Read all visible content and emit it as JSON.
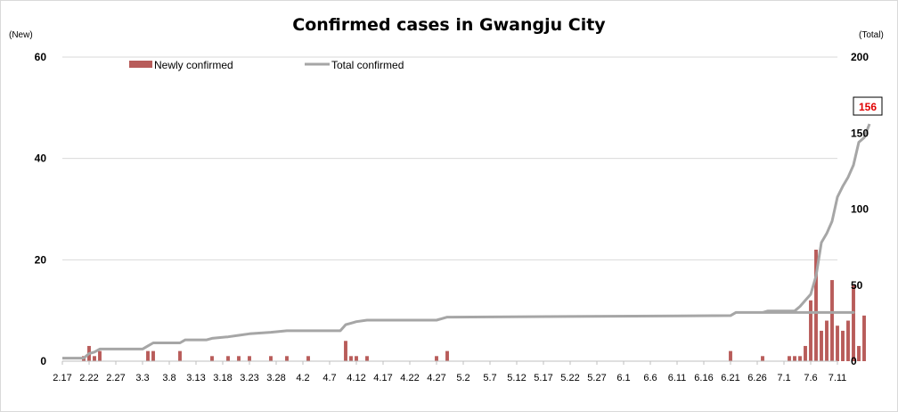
{
  "chart_data": {
    "type": "bar+line",
    "title": "Confirmed cases in Gwangju City",
    "left_axis_unit": "(New)",
    "right_axis_unit": "(Total)",
    "left_ylim": [
      0,
      60
    ],
    "left_yticks": [
      "0",
      "20",
      "40",
      "60"
    ],
    "right_ylim": [
      0,
      200
    ],
    "right_yticks": [
      "0",
      "50",
      "100",
      "150",
      "200"
    ],
    "x_tick_labels": [
      "2.17",
      "2.22",
      "2.27",
      "3.3",
      "3.8",
      "3.13",
      "3.18",
      "3.23",
      "3.28",
      "4.2",
      "4.7",
      "4.12",
      "4.17",
      "4.22",
      "4.27",
      "5.2",
      "5.7",
      "5.12",
      "5.17",
      "5.22",
      "5.27",
      "6.1",
      "6.6",
      "6.11",
      "6.16",
      "6.21",
      "6.26",
      "7.1",
      "7.6",
      "7.11"
    ],
    "day_count": 146,
    "grid": true,
    "legend": [
      {
        "name": "Newly confirmed",
        "color": "#b85c5a",
        "kind": "bar"
      },
      {
        "name": "Total confirmed",
        "color": "#a6a6a6",
        "kind": "line"
      }
    ],
    "series": [
      {
        "name": "Newly confirmed",
        "axis": "left",
        "color": "#b85c5a",
        "points": [
          [
            4,
            1
          ],
          [
            5,
            3
          ],
          [
            6,
            1
          ],
          [
            7,
            2
          ],
          [
            16,
            2
          ],
          [
            17,
            2
          ],
          [
            22,
            2
          ],
          [
            28,
            1
          ],
          [
            31,
            1
          ],
          [
            33,
            1
          ],
          [
            35,
            1
          ],
          [
            39,
            1
          ],
          [
            42,
            1
          ],
          [
            46,
            1
          ],
          [
            53,
            4
          ],
          [
            54,
            1
          ],
          [
            55,
            1
          ],
          [
            57,
            1
          ],
          [
            70,
            1
          ],
          [
            72,
            2
          ],
          [
            125,
            2
          ],
          [
            148,
            1
          ],
          [
            131,
            1
          ],
          [
            136,
            1
          ],
          [
            137,
            1
          ],
          [
            138,
            1
          ],
          [
            139,
            3
          ],
          [
            140,
            12
          ],
          [
            141,
            22
          ],
          [
            142,
            6
          ],
          [
            143,
            8
          ],
          [
            144,
            16
          ],
          [
            145,
            7
          ],
          [
            146,
            6
          ],
          [
            147,
            8
          ],
          [
            148,
            15
          ],
          [
            149,
            3
          ],
          [
            150,
            9
          ]
        ]
      },
      {
        "name": "Total confirmed",
        "axis": "right",
        "color": "#a6a6a6",
        "points": [
          [
            0,
            2
          ],
          [
            4,
            2
          ],
          [
            5,
            5
          ],
          [
            6,
            6
          ],
          [
            7,
            8
          ],
          [
            15,
            8
          ],
          [
            16,
            10
          ],
          [
            17,
            12
          ],
          [
            22,
            12
          ],
          [
            23,
            14
          ],
          [
            27,
            14
          ],
          [
            28,
            15
          ],
          [
            31,
            16
          ],
          [
            33,
            17
          ],
          [
            35,
            18
          ],
          [
            39,
            19
          ],
          [
            42,
            20
          ],
          [
            46,
            20
          ],
          [
            52,
            20
          ],
          [
            53,
            24
          ],
          [
            54,
            25
          ],
          [
            55,
            26
          ],
          [
            57,
            27
          ],
          [
            70,
            27
          ],
          [
            71,
            28
          ],
          [
            72,
            29
          ],
          [
            125,
            30
          ],
          [
            126,
            32
          ],
          [
            148,
            32
          ],
          [
            131,
            32
          ],
          [
            132,
            33
          ],
          [
            137,
            33
          ],
          [
            138,
            36
          ],
          [
            139,
            40
          ],
          [
            140,
            44
          ],
          [
            141,
            56
          ],
          [
            142,
            78
          ],
          [
            143,
            84
          ],
          [
            144,
            92
          ],
          [
            145,
            108
          ],
          [
            146,
            115
          ],
          [
            147,
            121
          ],
          [
            148,
            129
          ],
          [
            149,
            144
          ],
          [
            150,
            147
          ],
          [
            151,
            156
          ]
        ]
      }
    ],
    "annotation": "156"
  }
}
